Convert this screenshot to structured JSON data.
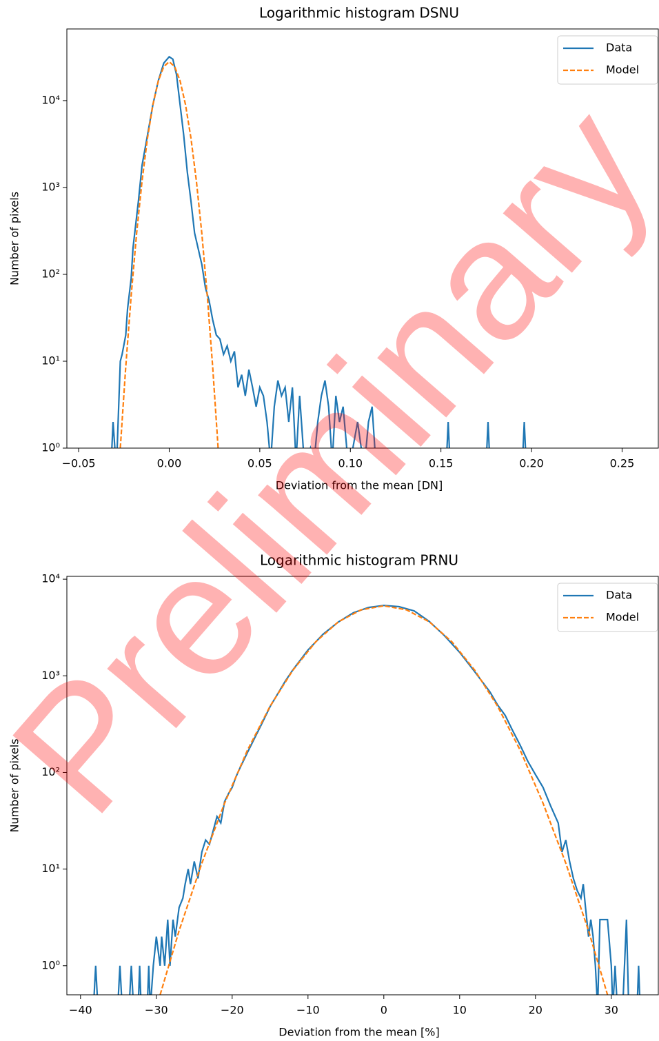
{
  "watermark": "Preliminary",
  "chart_data": [
    {
      "type": "line",
      "title": "Logarithmic histogram DSNU",
      "xlabel": "Deviation from the mean [DN]",
      "ylabel": "Number of pixels",
      "ylog": true,
      "legend": "upper right",
      "xlim": [
        -0.0565,
        0.27
      ],
      "ylim": [
        1,
        66800
      ],
      "xticks": [
        {
          "value": -0.05,
          "label": "−0.05"
        },
        {
          "value": 0,
          "label": "0.00"
        },
        {
          "value": 0.05,
          "label": "0.05"
        },
        {
          "value": 0.1,
          "label": "0.10"
        },
        {
          "value": 0.15,
          "label": "0.15"
        },
        {
          "value": 0.2,
          "label": "0.20"
        },
        {
          "value": 0.25,
          "label": "0.25"
        }
      ],
      "yticks": [
        {
          "value": 1,
          "label": "10⁰"
        },
        {
          "value": 10,
          "label": "10¹"
        },
        {
          "value": 100,
          "label": "10²"
        },
        {
          "value": 1000,
          "label": "10³"
        },
        {
          "value": 10000,
          "label": "10⁴"
        }
      ],
      "series": [
        {
          "name": "Data",
          "color": "#1f77b4",
          "dash": false,
          "x": [
            -0.05,
            -0.032,
            -0.031,
            -0.03,
            -0.029,
            -0.027,
            -0.026,
            -0.024,
            -0.023,
            -0.021,
            -0.02,
            -0.017,
            -0.015,
            -0.012,
            -0.009,
            -0.006,
            -0.003,
            0,
            0.002,
            0.004,
            0.006,
            0.008,
            0.01,
            0.012,
            0.014,
            0.018,
            0.02,
            0.022,
            0.024,
            0.026,
            0.028,
            0.03,
            0.032,
            0.034,
            0.036,
            0.038,
            0.04,
            0.042,
            0.044,
            0.046,
            0.048,
            0.05,
            0.052,
            0.054,
            0.056,
            0.058,
            0.06,
            0.062,
            0.064,
            0.066,
            0.068,
            0.07,
            0.072,
            0.074,
            0.076,
            0.078,
            0.08,
            0.082,
            0.084,
            0.086,
            0.088,
            0.09,
            0.092,
            0.094,
            0.096,
            0.098,
            0.1,
            0.104,
            0.106,
            0.108,
            0.11,
            0.112,
            0.114,
            0.153,
            0.154,
            0.155,
            0.175,
            0.176,
            0.177,
            0.195,
            0.196,
            0.197,
            0.26
          ],
          "values": [
            0,
            0,
            2,
            1,
            0,
            10,
            12,
            20,
            40,
            90,
            200,
            700,
            1800,
            4000,
            9000,
            17000,
            27000,
            32000,
            30000,
            20000,
            9000,
            4000,
            1500,
            700,
            300,
            130,
            70,
            50,
            30,
            20,
            18,
            12,
            15,
            10,
            13,
            5,
            7,
            4,
            8,
            5,
            3,
            5,
            4,
            2,
            0,
            3,
            6,
            4,
            5,
            2,
            5,
            0,
            4,
            1,
            0,
            1,
            0,
            2,
            4,
            6,
            3,
            0,
            4,
            2,
            3,
            1,
            0,
            2,
            1,
            0,
            2,
            3,
            0,
            0,
            2,
            0,
            0,
            2,
            0,
            0,
            2,
            0,
            0
          ]
        },
        {
          "name": "Model",
          "color": "#ff7f0e",
          "dash": true,
          "x": [
            -0.027,
            -0.024,
            -0.021,
            -0.018,
            -0.015,
            -0.012,
            -0.009,
            -0.006,
            -0.003,
            0,
            0.003,
            0.006,
            0.009,
            0.012,
            0.015,
            0.018,
            0.021,
            0.024,
            0.027
          ],
          "values": [
            1,
            8.6,
            57,
            296,
            1186,
            3700,
            8970,
            16880,
            24680,
            28000,
            24680,
            16880,
            8970,
            3700,
            1186,
            296,
            57,
            8.6,
            1
          ]
        }
      ]
    },
    {
      "type": "line",
      "title": "Logarithmic histogram PRNU",
      "xlabel": "Deviation from the mean [%]",
      "ylabel": "Number of pixels",
      "ylog": true,
      "legend": "upper right",
      "xlim": [
        -41.8,
        36.2
      ],
      "ylim": [
        0.5,
        10700
      ],
      "xticks": [
        {
          "value": -40,
          "label": "−40"
        },
        {
          "value": -30,
          "label": "−30"
        },
        {
          "value": -20,
          "label": "−20"
        },
        {
          "value": -10,
          "label": "−10"
        },
        0,
        10,
        20,
        30
      ],
      "yticks": [
        {
          "value": 1,
          "label": "10⁰"
        },
        {
          "value": 10,
          "label": "10¹"
        },
        {
          "value": 100,
          "label": "10²"
        },
        {
          "value": 1000,
          "label": "10³"
        },
        {
          "value": 10000,
          "label": "10⁴"
        }
      ],
      "series": [
        {
          "name": "Data",
          "color": "#1f77b4",
          "dash": false,
          "x": [
            -38.3,
            -38,
            -37.7,
            -35.1,
            -34.8,
            -34.5,
            -33.6,
            -33.3,
            -33,
            -32.4,
            -32.2,
            -32,
            -31.2,
            -31,
            -30.8,
            -30.4,
            -30,
            -29.5,
            -29.3,
            -28.9,
            -28.5,
            -28.2,
            -27.8,
            -27.5,
            -27,
            -26.5,
            -26.2,
            -25.8,
            -25.5,
            -25,
            -24.5,
            -24,
            -23.5,
            -23,
            -22.5,
            -22,
            -21.5,
            -21,
            -20.5,
            -20,
            -19.5,
            -19,
            -18,
            -17,
            -16,
            -15,
            -14,
            -13,
            -12,
            -10,
            -8,
            -6,
            -4,
            -2,
            0,
            2,
            4,
            6,
            8,
            10,
            12,
            14,
            15,
            16,
            17,
            18,
            19,
            20,
            21,
            22,
            23,
            23.5,
            24,
            24.5,
            25,
            25.5,
            26,
            26.3,
            26.6,
            27,
            27.3,
            27.6,
            27.9,
            28.2,
            28.5,
            29,
            29.5,
            30,
            30.2,
            30.5,
            30.8,
            31.5,
            32,
            32.3,
            33.4,
            33.6,
            33.8
          ],
          "values": [
            0,
            1,
            0,
            0,
            1,
            0,
            0,
            1,
            0,
            0,
            1,
            0,
            0,
            1,
            0,
            1,
            2,
            1,
            2,
            1,
            3,
            1,
            3,
            2,
            4,
            5,
            7,
            10,
            7,
            12,
            8,
            15,
            20,
            18,
            25,
            35,
            30,
            50,
            60,
            70,
            90,
            110,
            160,
            230,
            330,
            480,
            650,
            880,
            1150,
            1850,
            2700,
            3600,
            4500,
            5100,
            5350,
            5200,
            4700,
            3650,
            2600,
            1750,
            1100,
            680,
            500,
            390,
            270,
            190,
            130,
            95,
            70,
            45,
            30,
            15,
            20,
            12,
            8,
            6,
            5,
            7,
            4,
            2,
            3,
            2,
            1,
            0,
            3,
            3,
            3,
            1,
            0,
            1,
            0,
            0,
            3,
            0,
            0,
            1,
            0
          ]
        },
        {
          "name": "Model",
          "color": "#ff7f0e",
          "dash": true,
          "x": [
            -29.5,
            -27,
            -24,
            -21,
            -18,
            -15,
            -12,
            -9,
            -6,
            -3,
            0,
            3,
            6,
            9,
            12,
            15,
            18,
            21,
            24,
            27,
            29.5
          ],
          "values": [
            0.5,
            2.3,
            11.5,
            48,
            169,
            485,
            1140,
            2240,
            3620,
            4815,
            5300,
            4815,
            3620,
            2240,
            1140,
            485,
            169,
            48,
            11.5,
            2.3,
            0.5
          ]
        }
      ]
    }
  ]
}
